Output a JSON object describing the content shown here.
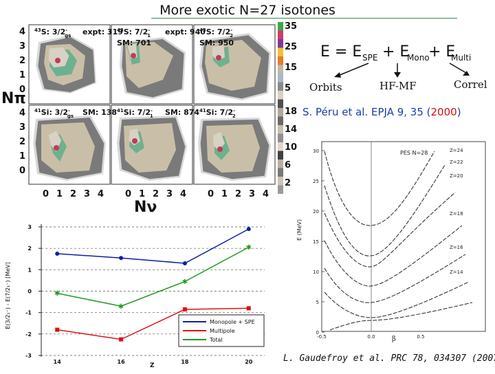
{
  "title": "More exotic N=27 isotones",
  "contour_figure": {
    "panels": [
      {
        "id": "s43-gs",
        "nucleus_mass": "43",
        "nucleus_symbol": "S",
        "spin": "3/2",
        "spin_sup": "-",
        "spin_sub": "gs",
        "line1": "",
        "line2": ""
      },
      {
        "id": "s43-72-1",
        "nucleus_mass": "43",
        "nucleus_symbol": "S",
        "spin": "7/2",
        "spin_sup": "-",
        "spin_sub": "1",
        "line1": "expt: 319",
        "line2": "SM: 701"
      },
      {
        "id": "s43-72-2",
        "nucleus_mass": "43",
        "nucleus_symbol": "S",
        "spin": "7/2",
        "spin_sup": "-",
        "spin_sub": "2",
        "line1": "expt: 940",
        "line2": "SM: 950"
      },
      {
        "id": "si41-gs",
        "nucleus_mass": "41",
        "nucleus_symbol": "Si",
        "spin": "3/2",
        "spin_sup": "-",
        "spin_sub": "gs",
        "line1": "",
        "line2": ""
      },
      {
        "id": "si41-72-1",
        "nucleus_mass": "41",
        "nucleus_symbol": "Si",
        "spin": "7/2",
        "spin_sup": "-",
        "spin_sub": "1",
        "line1": "SM: 138",
        "line2": ""
      },
      {
        "id": "si41-72-2",
        "nucleus_mass": "41",
        "nucleus_symbol": "Si",
        "spin": "7/2",
        "spin_sup": "-",
        "spin_sub": "2",
        "line1": "SM: 874",
        "line2": ""
      }
    ],
    "y_ticks": [
      "4",
      "3",
      "2",
      "1",
      "0"
    ],
    "x_ticks": [
      "0",
      "1",
      "2",
      "3",
      "4"
    ],
    "y_label": "Nπ",
    "x_label": "Nν",
    "colorbar_top": [
      "35",
      "25",
      "15",
      "5"
    ],
    "colorbar_bottom": [
      "18",
      "14",
      "10",
      "6",
      "2"
    ]
  },
  "equation": {
    "lhs": "E = E",
    "term1_sub": "SPE",
    "term2": "+ E",
    "term2_sub": "Mono",
    "term3": "+ E",
    "term3_sub": "Multi",
    "labels": [
      "Orbits",
      "HF-MF",
      "Correl"
    ]
  },
  "ref_peru": {
    "text": "S. Péru et al. EPJA 9,  35 (",
    "year": "2000",
    "close": ")"
  },
  "pes_figure": {
    "title": "PES N=28",
    "x_label": "β",
    "y_label": "E (MeV)",
    "x_ticks": [
      "-0.5",
      "0.0",
      "0.5"
    ],
    "y_ticks": [
      "30",
      "25",
      "20",
      "15",
      "10",
      "5",
      "0"
    ],
    "curve_labels": [
      "Z=24",
      "Z=22",
      "Z=20",
      "Z=18",
      "Z=16",
      "Z=14"
    ]
  },
  "ref_gaudefroy": "L. Gaudefroy et al. PRC 78, 034307 (2007)",
  "chart_data": {
    "type": "line",
    "x": [
      14,
      16,
      18,
      20
    ],
    "xlabel": "Z",
    "ylabel": "E(3/2₁⁻) - E(7/2₁⁻) [MeV]",
    "ylim": [
      -3,
      3
    ],
    "yticks": [
      3,
      2,
      1,
      0,
      -1,
      -2,
      -3
    ],
    "grid": "dashed horizontal",
    "legend_position": "bottom-right",
    "series": [
      {
        "name": "Monopole + SPE",
        "color": "#0d1fa8",
        "values": [
          1.75,
          1.55,
          1.3,
          2.9
        ]
      },
      {
        "name": "Multipole",
        "color": "#e01010",
        "values": [
          -1.8,
          -2.25,
          -0.85,
          -0.8
        ]
      },
      {
        "name": "Total",
        "color": "#1f9a1f",
        "values": [
          -0.1,
          -0.7,
          0.45,
          2.05
        ]
      }
    ]
  }
}
